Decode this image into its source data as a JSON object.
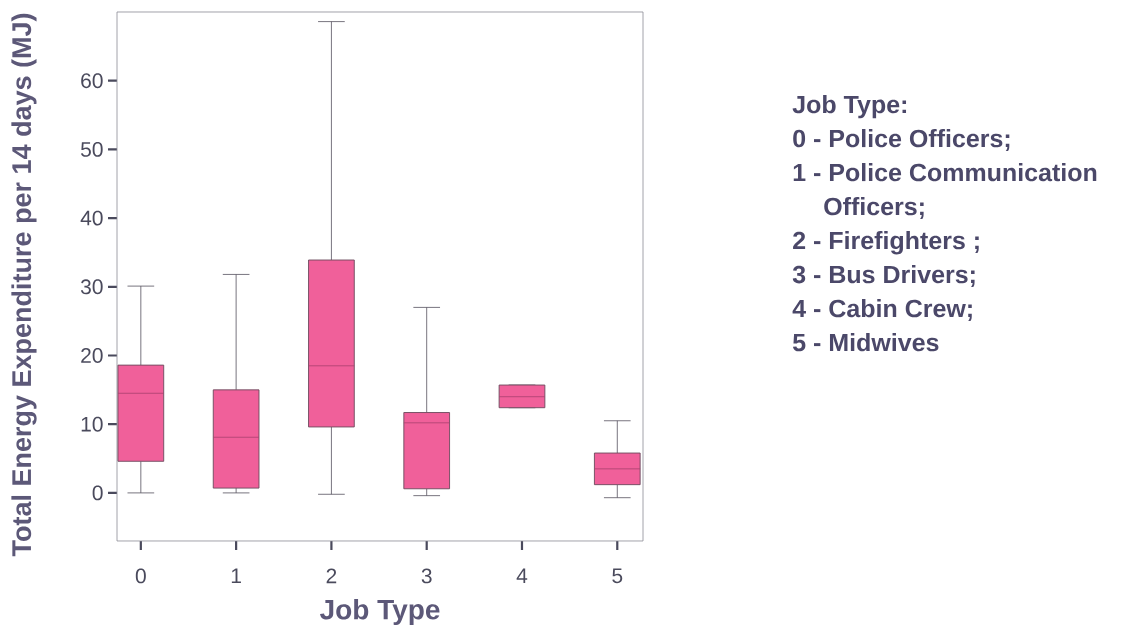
{
  "chart_data": {
    "type": "box",
    "xlabel": "Job Type",
    "ylabel": "Total Energy Expenditure per 14 days (MJ)",
    "categories": [
      "0",
      "1",
      "2",
      "3",
      "4",
      "5"
    ],
    "boxes": [
      {
        "low": 0,
        "q1": 4.6,
        "median": 14.5,
        "q3": 18.6,
        "high": 30.1
      },
      {
        "low": 0,
        "q1": 0.7,
        "median": 8.1,
        "q3": 15,
        "high": 31.8
      },
      {
        "low": -0.2,
        "q1": 9.6,
        "median": 18.5,
        "q3": 33.9,
        "high": 68.6
      },
      {
        "low": -0.4,
        "q1": 0.6,
        "median": 10.2,
        "q3": 11.7,
        "high": 27
      },
      {
        "low": 12.4,
        "q1": 12.4,
        "median": 14,
        "q3": 15.7,
        "high": 15.7
      },
      {
        "low": -0.7,
        "q1": 1.2,
        "median": 3.5,
        "q3": 5.8,
        "high": 10.5
      }
    ],
    "color": "#f0609a",
    "ylim": [
      -7,
      70
    ],
    "yticks": [
      0,
      10,
      20,
      30,
      40,
      50,
      60
    ],
    "annotations": [
      "Job Type:",
      "0 - Police Officers;",
      "1 - Police Communication Officers;",
      "2 - Firefighters ;",
      "3 - Bus Drivers;",
      "4 - Cabin Crew;",
      "5 - Midwives"
    ]
  }
}
